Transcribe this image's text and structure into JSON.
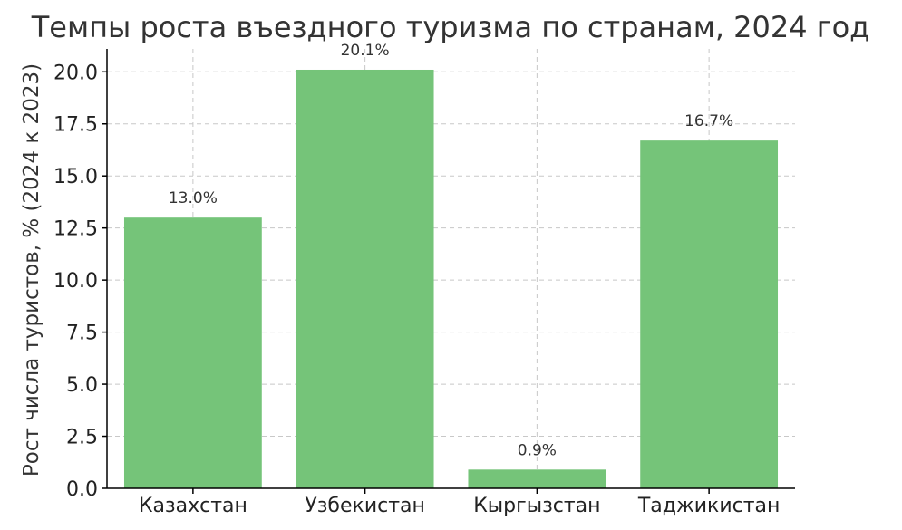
{
  "chart_data": {
    "type": "bar",
    "title": "Темпы роста въездного туризма по странам, 2024 год",
    "xlabel": "",
    "ylabel": "Рост числа туристов, % (2024 к 2023)",
    "categories": [
      "Казахстан",
      "Узбекистан",
      "Кыргызстан",
      "Таджикистан"
    ],
    "values": [
      13.0,
      20.1,
      0.9,
      16.7
    ],
    "value_labels": [
      "13.0%",
      "20.1%",
      "0.9%",
      "16.7%"
    ],
    "ylim": [
      0,
      21.1
    ],
    "yticks": [
      0.0,
      2.5,
      5.0,
      7.5,
      10.0,
      12.5,
      15.0,
      17.5,
      20.0
    ],
    "ytick_labels": [
      "0.0",
      "2.5",
      "5.0",
      "7.5",
      "10.0",
      "12.5",
      "15.0",
      "17.5",
      "20.0"
    ],
    "grid": true,
    "bar_color": "#75c479",
    "grid_color": "#c8c8c8"
  }
}
